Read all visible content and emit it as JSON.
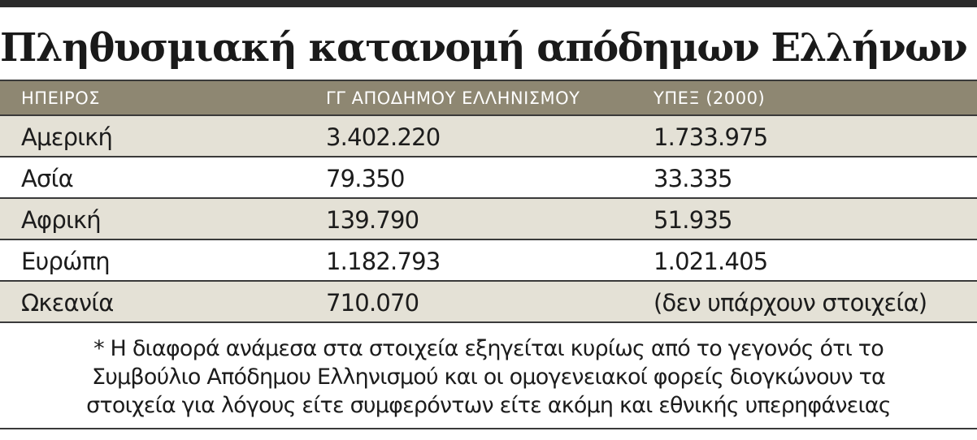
{
  "title": "Πληθυσμιακή κατανομή απόδημων Ελλήνων *",
  "table": {
    "headers": [
      "ΗΠΕΙΡΟΣ",
      "ΓΓ ΑΠΟΔΗΜΟΥ ΕΛΛΗΝΙΣΜΟΥ",
      "ΥΠΕΞ (2000)"
    ],
    "rows": [
      [
        "Αμερική",
        "3.402.220",
        "1.733.975"
      ],
      [
        "Ασία",
        "79.350",
        "33.335"
      ],
      [
        "Αφρική",
        "139.790",
        "51.935"
      ],
      [
        "Ευρώπη",
        "1.182.793",
        "1.021.405"
      ],
      [
        "Ωκεανία",
        "710.070",
        "(δεν υπάρχουν στοιχεία)"
      ]
    ]
  },
  "footnote": {
    "lines": [
      "* Η διαφορά ανάμεσα στα στοιχεία εξηγείται κυρίως από το γεγονός ότι το",
      "Συμβούλιο Απόδημου Ελληνισμού και οι ομογενειακοί φορείς διογκώνουν τα",
      "στοιχεία για λόγους είτε συμφερόντων είτε ακόμη και εθνικής υπερηφάνειας"
    ]
  },
  "colors": {
    "header_bg": "#8e8772",
    "alt_row_bg": "#e4e1d6",
    "rule": "#2b2b2b"
  }
}
